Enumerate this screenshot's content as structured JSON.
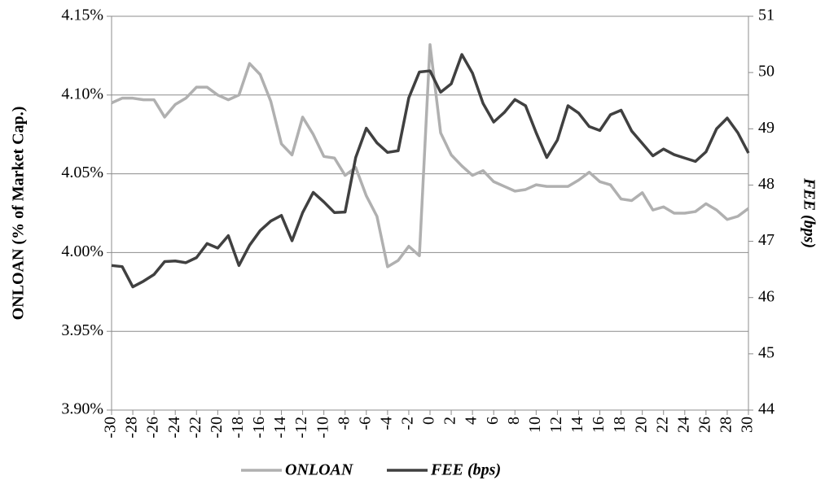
{
  "chart_data": {
    "type": "line",
    "x": [
      -30,
      -29,
      -28,
      -27,
      -26,
      -25,
      -24,
      -23,
      -22,
      -21,
      -20,
      -19,
      -18,
      -17,
      -16,
      -15,
      -14,
      -13,
      -12,
      -11,
      -10,
      -9,
      -8,
      -7,
      -6,
      -5,
      -4,
      -3,
      -2,
      -1,
      0,
      1,
      2,
      3,
      4,
      5,
      6,
      7,
      8,
      9,
      10,
      11,
      12,
      13,
      14,
      15,
      16,
      17,
      18,
      19,
      20,
      21,
      22,
      23,
      24,
      25,
      26,
      27,
      28,
      29,
      30
    ],
    "series": [
      {
        "name": "ONLOAN",
        "color": "#b0b0b0",
        "axis": "y",
        "values": [
          4.095,
          4.098,
          4.098,
          4.097,
          4.097,
          4.086,
          4.094,
          4.098,
          4.105,
          4.105,
          4.1,
          4.097,
          4.1,
          4.12,
          4.113,
          4.096,
          4.069,
          4.062,
          4.086,
          4.075,
          4.061,
          4.06,
          4.049,
          4.054,
          4.036,
          4.023,
          3.991,
          3.995,
          4.004,
          3.998,
          4.132,
          4.076,
          4.062,
          4.055,
          4.049,
          4.052,
          4.045,
          4.042,
          4.039,
          4.04,
          4.043,
          4.042,
          4.042,
          4.042,
          4.046,
          4.051,
          4.045,
          4.043,
          4.034,
          4.033,
          4.038,
          4.027,
          4.029,
          4.025,
          4.025,
          4.026,
          4.031,
          4.027,
          4.021,
          4.023,
          4.028
        ]
      },
      {
        "name": "FEE (bps)",
        "color": "#404040",
        "axis": "y2",
        "values": [
          46.57,
          46.55,
          46.19,
          46.29,
          46.41,
          46.64,
          46.65,
          46.62,
          46.71,
          46.96,
          46.88,
          47.1,
          46.57,
          46.93,
          47.19,
          47.36,
          47.46,
          47.01,
          47.51,
          47.87,
          47.7,
          47.51,
          47.52,
          48.49,
          49.01,
          48.75,
          48.58,
          48.61,
          49.55,
          50.01,
          50.03,
          49.65,
          49.8,
          50.32,
          49.99,
          49.45,
          49.12,
          49.29,
          49.52,
          49.41,
          48.93,
          48.49,
          48.8,
          49.41,
          49.28,
          49.04,
          48.97,
          49.25,
          49.33,
          48.96,
          48.74,
          48.52,
          48.64,
          48.54,
          48.48,
          48.42,
          48.59,
          49.0,
          49.19,
          48.93,
          48.57
        ]
      }
    ],
    "ylabel": "ONLOAN (% of Market Cap.)",
    "y2label": "FEE (bps)",
    "xlim": [
      -30,
      30
    ],
    "xticks": [
      -30,
      -28,
      -26,
      -24,
      -22,
      -20,
      -18,
      -16,
      -14,
      -12,
      -10,
      -8,
      -6,
      -4,
      -2,
      0,
      2,
      4,
      6,
      8,
      10,
      12,
      14,
      16,
      18,
      20,
      22,
      24,
      26,
      28,
      30
    ],
    "ylim": [
      3.9,
      4.15
    ],
    "yticks": [
      {
        "value": 3.9,
        "label": "3.90%"
      },
      {
        "value": 3.95,
        "label": "3.95%"
      },
      {
        "value": 4.0,
        "label": "4.00%"
      },
      {
        "value": 4.05,
        "label": "4.05%"
      },
      {
        "value": 4.1,
        "label": "4.10%"
      },
      {
        "value": 4.15,
        "label": "4.15%"
      }
    ],
    "y2lim": [
      44,
      51
    ],
    "y2ticks": [
      44,
      45,
      46,
      47,
      48,
      49,
      50,
      51
    ],
    "grid": true,
    "legend": "bottom"
  }
}
